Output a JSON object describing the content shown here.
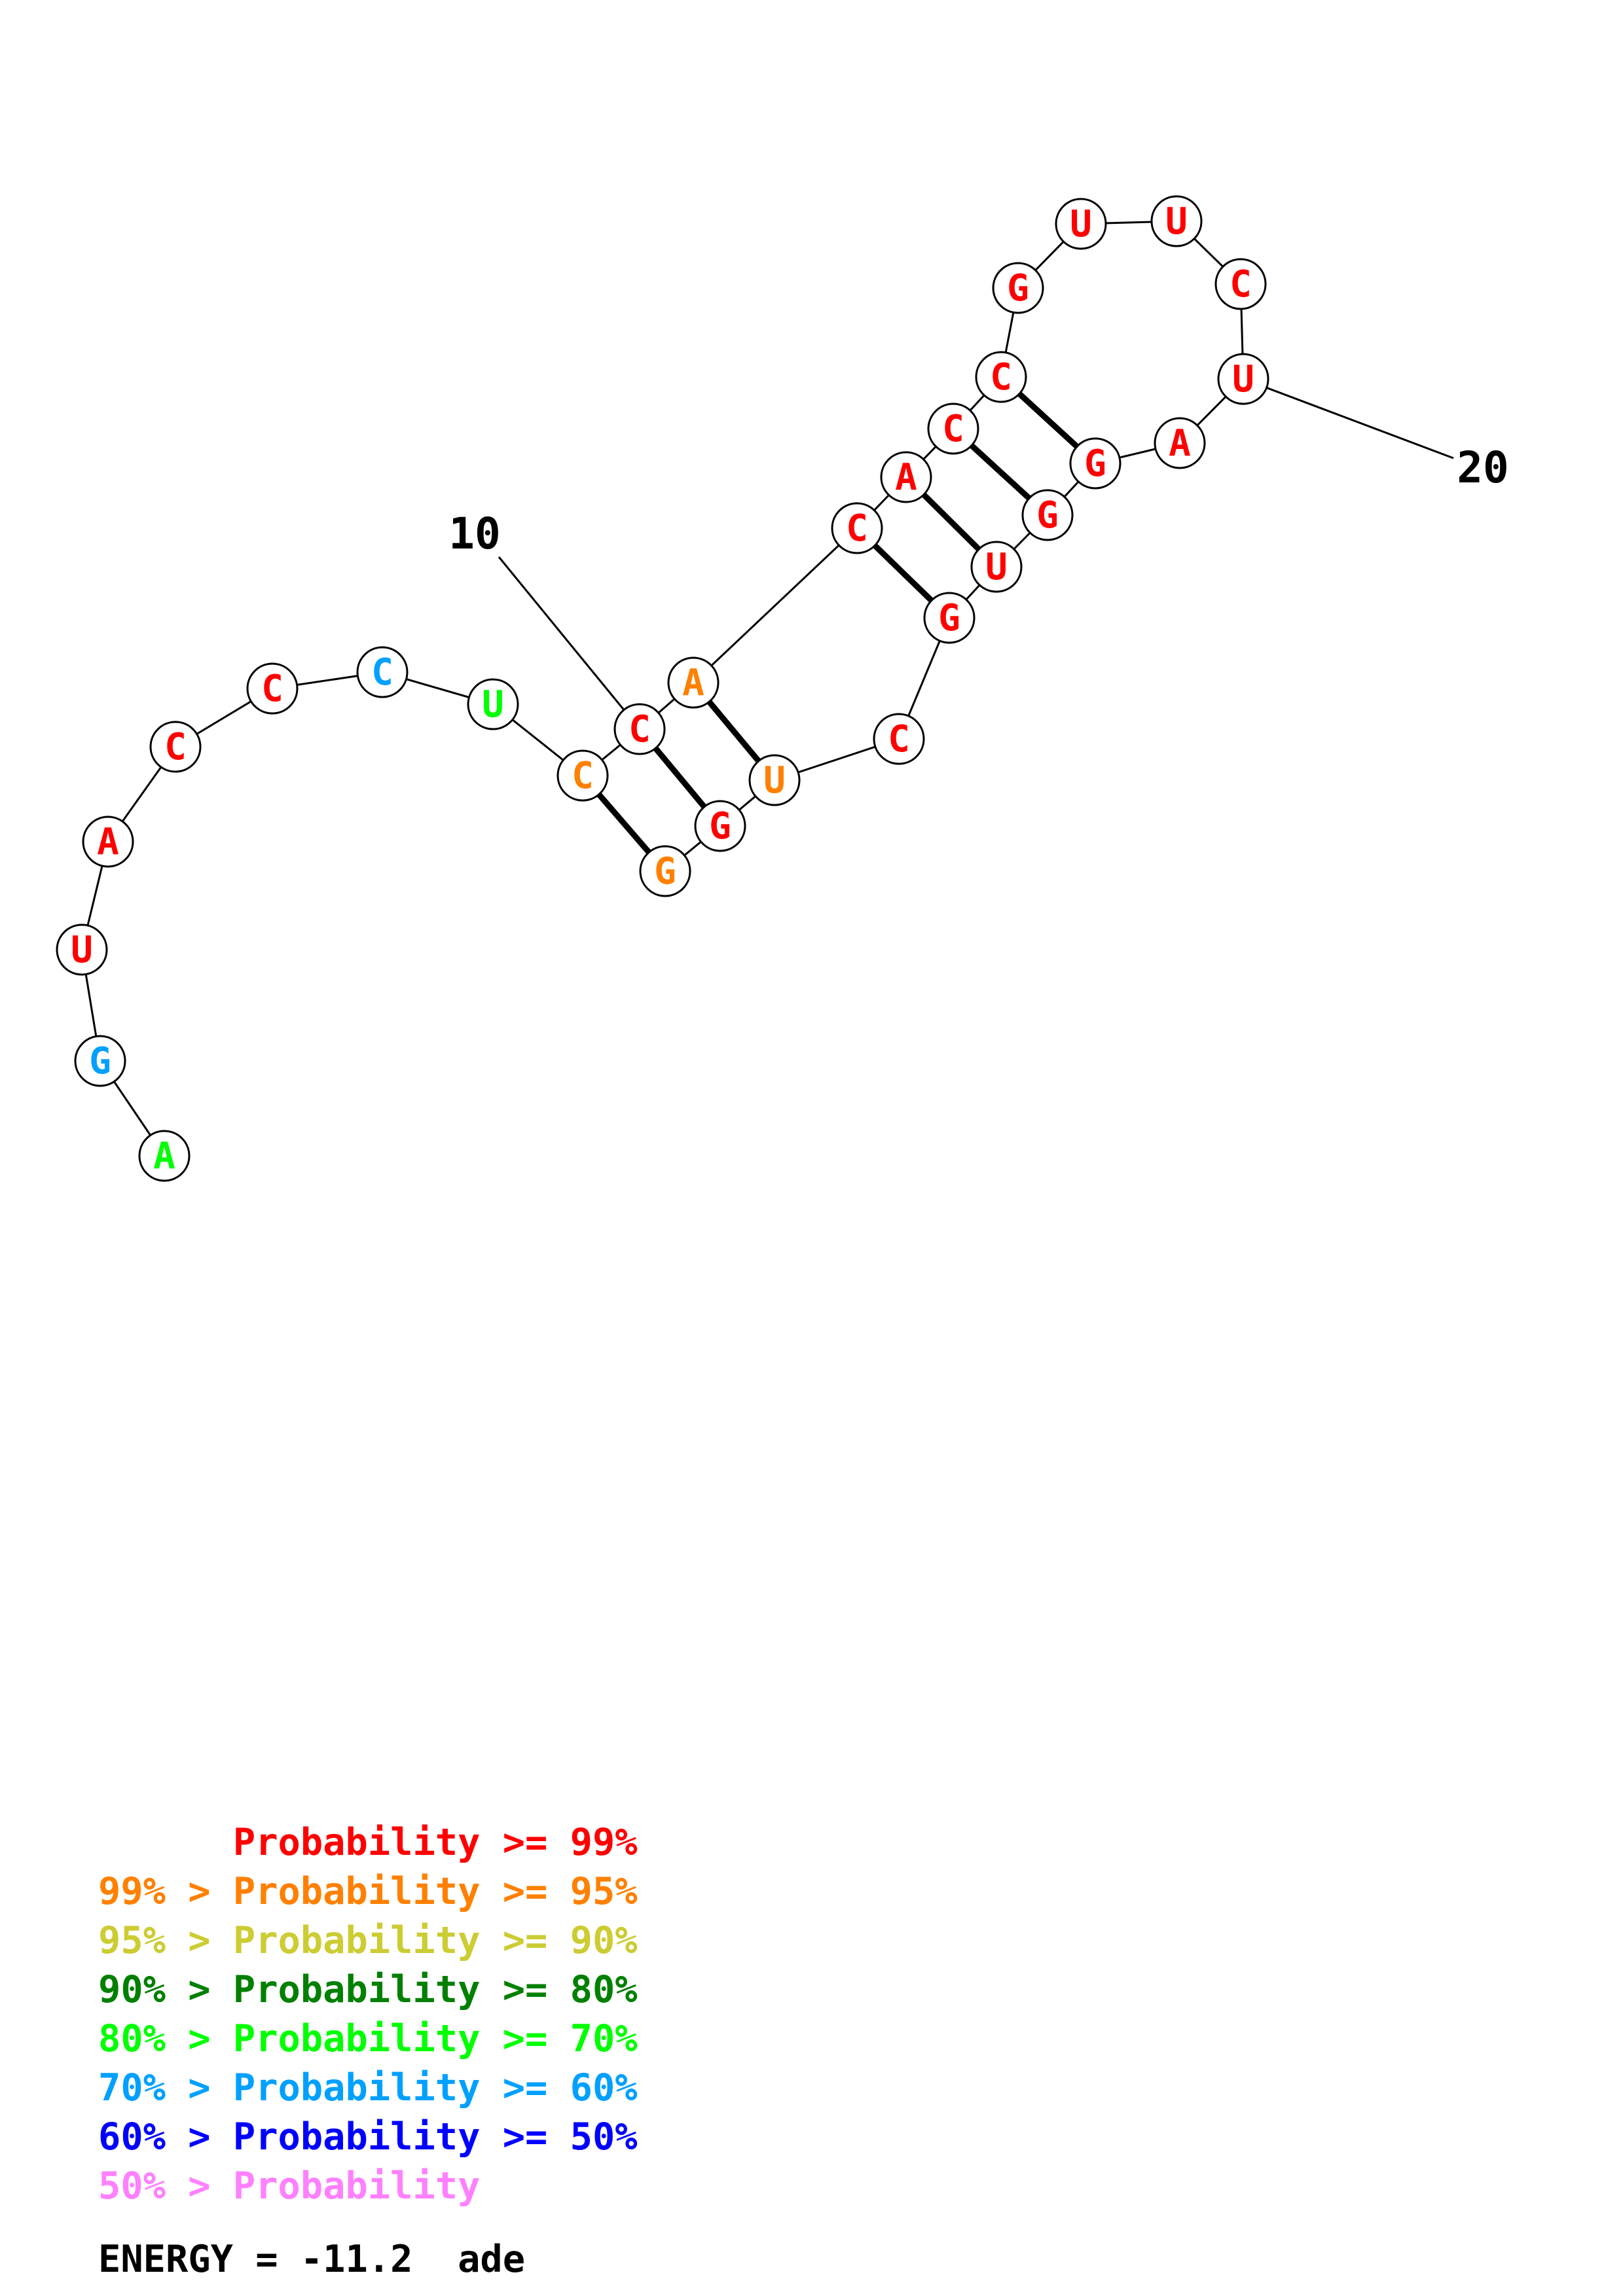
{
  "colors": {
    "p99": "#ff0000",
    "p95": "#ff8000",
    "p90": "#cccc33",
    "p80": "#008000",
    "p70": "#00ff00",
    "p60": "#00a0ff",
    "p50": "#0000ff",
    "plow": "#ff80ff"
  },
  "nucleotides": [
    {
      "i": 1,
      "base": "A",
      "prob": "p70"
    },
    {
      "i": 2,
      "base": "G",
      "prob": "p60"
    },
    {
      "i": 3,
      "base": "U",
      "prob": "p99"
    },
    {
      "i": 4,
      "base": "A",
      "prob": "p99"
    },
    {
      "i": 5,
      "base": "C",
      "prob": "p99"
    },
    {
      "i": 6,
      "base": "C",
      "prob": "p99"
    },
    {
      "i": 7,
      "base": "C",
      "prob": "p60"
    },
    {
      "i": 8,
      "base": "U",
      "prob": "p70"
    },
    {
      "i": 9,
      "base": "C",
      "prob": "p95"
    },
    {
      "i": 10,
      "base": "C",
      "prob": "p99"
    },
    {
      "i": 11,
      "base": "A",
      "prob": "p95"
    },
    {
      "i": 12,
      "base": "C",
      "prob": "p99"
    },
    {
      "i": 13,
      "base": "A",
      "prob": "p99"
    },
    {
      "i": 14,
      "base": "C",
      "prob": "p99"
    },
    {
      "i": 15,
      "base": "C",
      "prob": "p99"
    },
    {
      "i": 16,
      "base": "G",
      "prob": "p99"
    },
    {
      "i": 17,
      "base": "U",
      "prob": "p99"
    },
    {
      "i": 18,
      "base": "U",
      "prob": "p99"
    },
    {
      "i": 19,
      "base": "C",
      "prob": "p99"
    },
    {
      "i": 20,
      "base": "U",
      "prob": "p99"
    },
    {
      "i": 21,
      "base": "A",
      "prob": "p99"
    },
    {
      "i": 22,
      "base": "G",
      "prob": "p99"
    },
    {
      "i": 23,
      "base": "G",
      "prob": "p99"
    },
    {
      "i": 24,
      "base": "U",
      "prob": "p99"
    },
    {
      "i": 25,
      "base": "G",
      "prob": "p99"
    },
    {
      "i": 26,
      "base": "C",
      "prob": "p99"
    },
    {
      "i": 27,
      "base": "U",
      "prob": "p95"
    },
    {
      "i": 28,
      "base": "G",
      "prob": "p99"
    },
    {
      "i": 29,
      "base": "G",
      "prob": "p95"
    }
  ],
  "pairs": [
    [
      9,
      29
    ],
    [
      10,
      28
    ],
    [
      11,
      27
    ],
    [
      12,
      25
    ],
    [
      13,
      24
    ],
    [
      14,
      23
    ],
    [
      15,
      22
    ]
  ],
  "position_labels": [
    {
      "i": 10,
      "text": "10"
    },
    {
      "i": 20,
      "text": "20"
    }
  ],
  "legend": [
    {
      "prefix": "",
      "text": "Probability >= 99%",
      "color": "p99"
    },
    {
      "prefix": "99% > ",
      "text": "Probability >= 95%",
      "color": "p95"
    },
    {
      "prefix": "95% > ",
      "text": "Probability >= 90%",
      "color": "p90"
    },
    {
      "prefix": "90% > ",
      "text": "Probability >= 80%",
      "color": "p80"
    },
    {
      "prefix": "80% > ",
      "text": "Probability >= 70%",
      "color": "p70"
    },
    {
      "prefix": "70% > ",
      "text": "Probability >= 60%",
      "color": "p60"
    },
    {
      "prefix": "60% > ",
      "text": "Probability >= 50%",
      "color": "p50"
    },
    {
      "prefix": "50% > ",
      "text": "Probability",
      "color": "plow"
    }
  ],
  "energy": "ENERGY = -11.2  ade"
}
